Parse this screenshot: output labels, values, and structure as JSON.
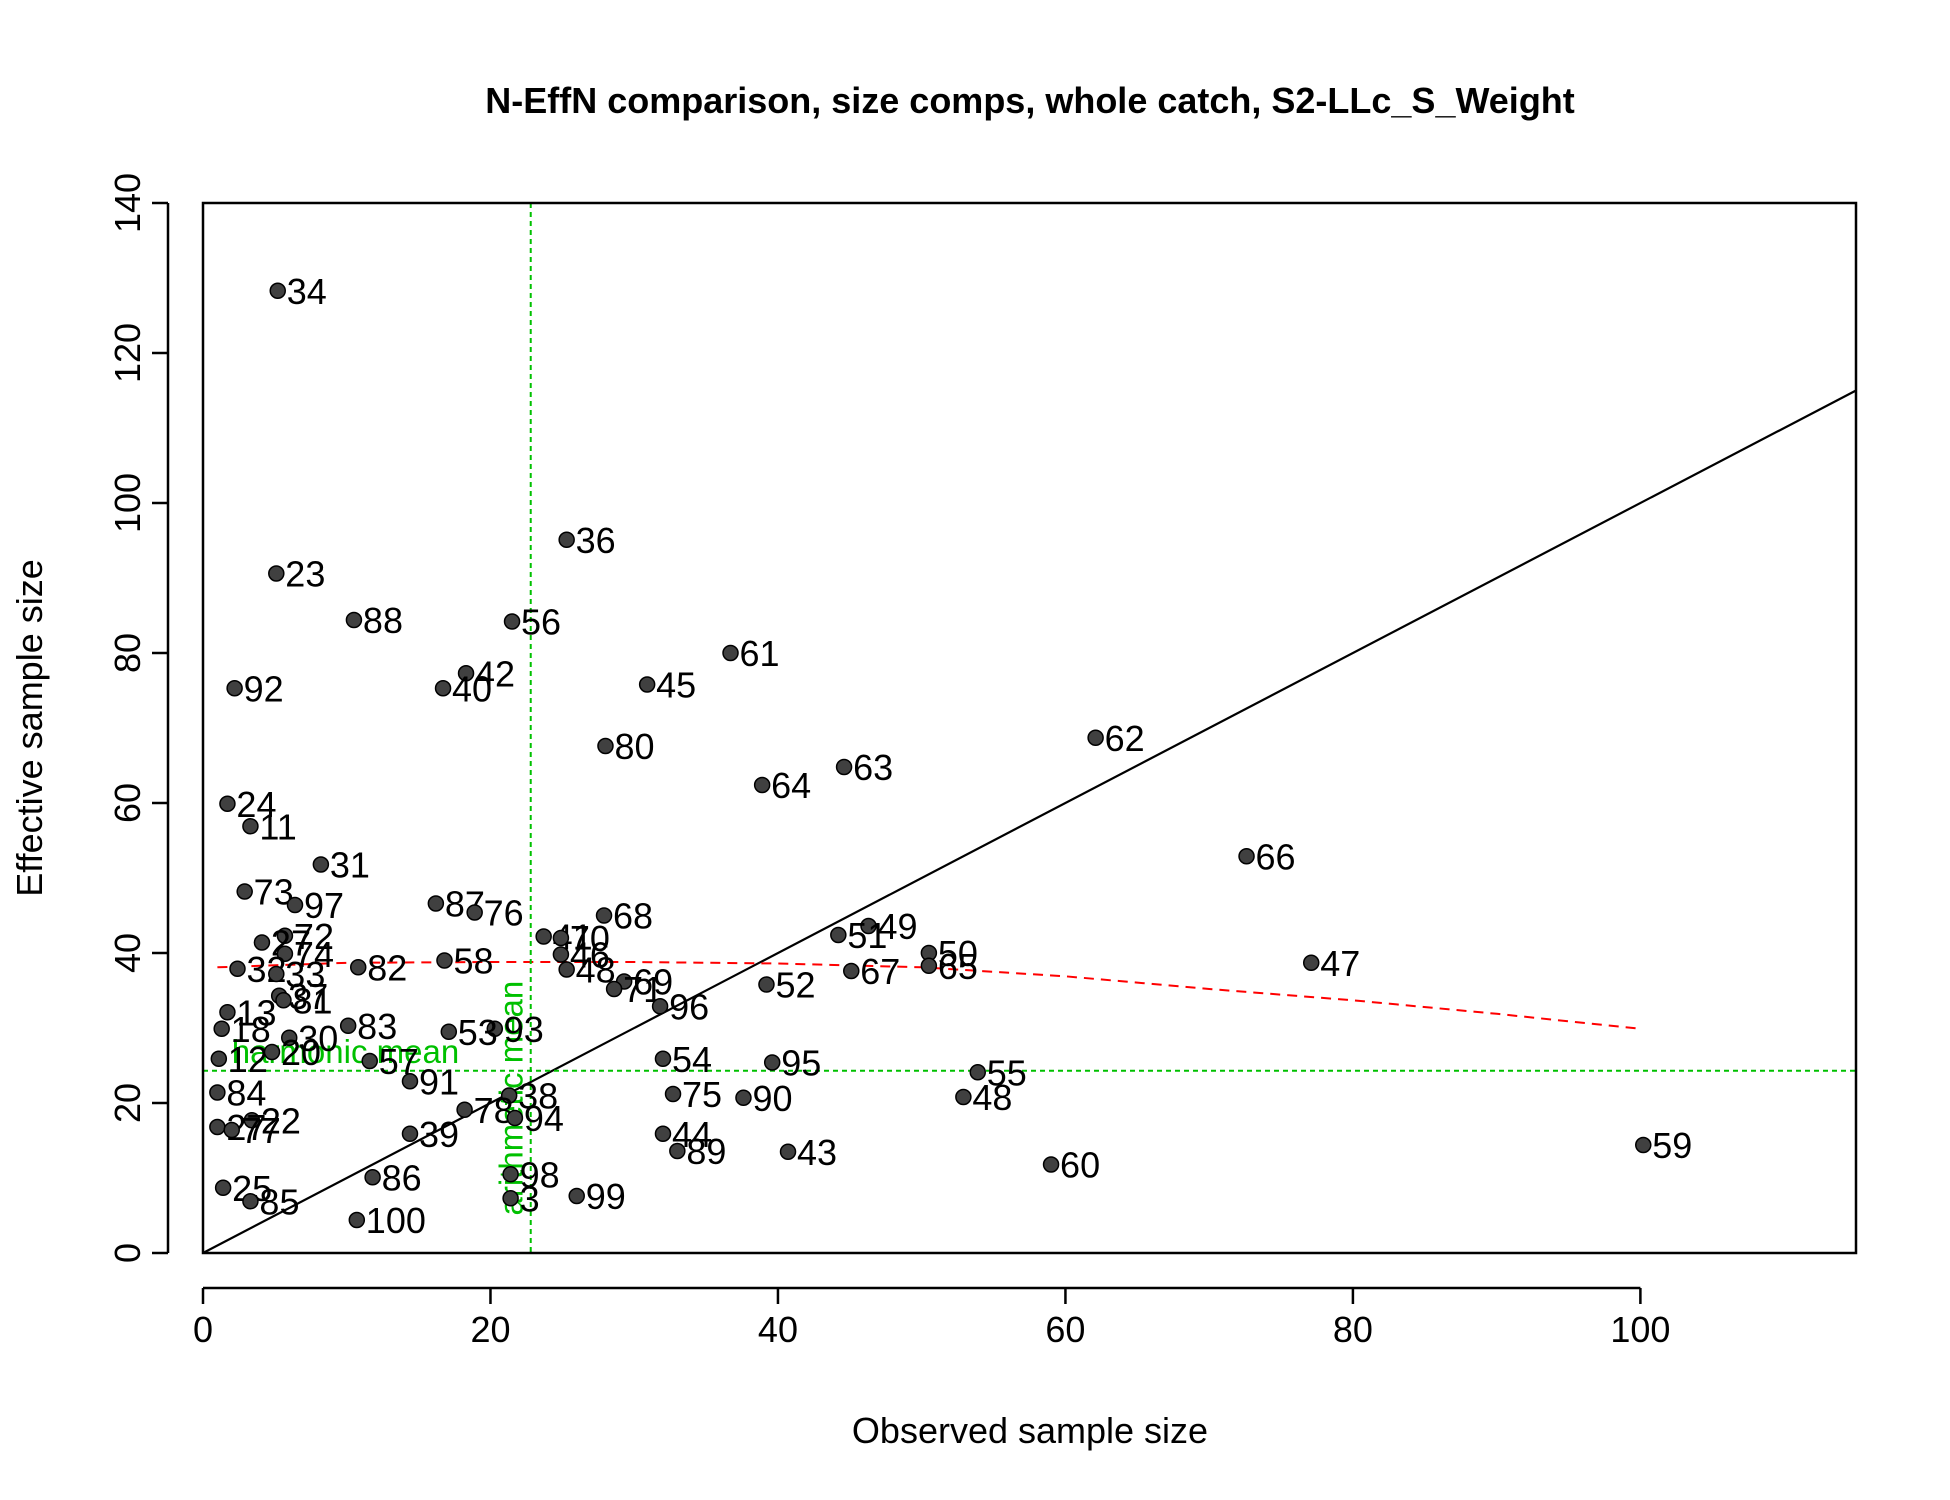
{
  "chart_data": {
    "type": "scatter",
    "title": "N-EffN comparison, size comps, whole catch, S2-LLc_S_Weight",
    "xlabel": "Observed sample size",
    "ylabel": "Effective sample size",
    "xlim": [
      0,
      115
    ],
    "ylim": [
      0,
      140
    ],
    "xticks": [
      0,
      20,
      40,
      60,
      80,
      100
    ],
    "yticks": [
      0,
      20,
      40,
      60,
      80,
      100,
      120,
      140
    ],
    "grid": false,
    "colors": {
      "points": "#404040",
      "point_edge": "#000000",
      "identity_line": "#000000",
      "loess": "#ff0000",
      "means": "#00c000"
    },
    "points": [
      {
        "label": "34",
        "x": 5.2,
        "y": 128.3
      },
      {
        "label": "36",
        "x": 25.3,
        "y": 95.1
      },
      {
        "label": "23",
        "x": 5.1,
        "y": 90.6
      },
      {
        "label": "88",
        "x": 10.5,
        "y": 84.4
      },
      {
        "label": "56",
        "x": 21.5,
        "y": 84.2
      },
      {
        "label": "61",
        "x": 36.7,
        "y": 80.0
      },
      {
        "label": "42",
        "x": 18.3,
        "y": 77.3
      },
      {
        "label": "45",
        "x": 30.9,
        "y": 75.8
      },
      {
        "label": "92",
        "x": 2.2,
        "y": 75.3
      },
      {
        "label": "40",
        "x": 16.7,
        "y": 75.3
      },
      {
        "label": "62",
        "x": 62.1,
        "y": 68.7
      },
      {
        "label": "80",
        "x": 28.0,
        "y": 67.6
      },
      {
        "label": "63",
        "x": 44.6,
        "y": 64.8
      },
      {
        "label": "64",
        "x": 38.9,
        "y": 62.4
      },
      {
        "label": "24",
        "x": 1.7,
        "y": 59.9
      },
      {
        "label": "11",
        "x": 3.3,
        "y": 56.9
      },
      {
        "label": "66",
        "x": 72.6,
        "y": 52.9
      },
      {
        "label": "31",
        "x": 8.2,
        "y": 51.8
      },
      {
        "label": "73",
        "x": 2.9,
        "y": 48.2
      },
      {
        "label": "87",
        "x": 16.2,
        "y": 46.6
      },
      {
        "label": "97",
        "x": 6.4,
        "y": 46.4
      },
      {
        "label": "76",
        "x": 18.9,
        "y": 45.4
      },
      {
        "label": "68",
        "x": 27.9,
        "y": 45.0
      },
      {
        "label": "49",
        "x": 46.3,
        "y": 43.6
      },
      {
        "label": "51",
        "x": 44.2,
        "y": 42.4
      },
      {
        "label": "72",
        "x": 5.7,
        "y": 42.3
      },
      {
        "label": "41",
        "x": 23.7,
        "y": 42.2
      },
      {
        "label": "70",
        "x": 24.9,
        "y": 42.0
      },
      {
        "label": "27",
        "x": 4.1,
        "y": 41.4
      },
      {
        "label": "74",
        "x": 5.7,
        "y": 39.9
      },
      {
        "label": "46",
        "x": 24.9,
        "y": 39.8
      },
      {
        "label": "50",
        "x": 50.5,
        "y": 40.0
      },
      {
        "label": "58",
        "x": 16.8,
        "y": 39.0
      },
      {
        "label": "47",
        "x": 77.1,
        "y": 38.7
      },
      {
        "label": "82",
        "x": 10.8,
        "y": 38.1
      },
      {
        "label": "65",
        "x": 50.5,
        "y": 38.3
      },
      {
        "label": "32",
        "x": 2.4,
        "y": 37.9
      },
      {
        "label": "48",
        "x": 25.3,
        "y": 37.8
      },
      {
        "label": "67",
        "x": 45.1,
        "y": 37.6
      },
      {
        "label": "33",
        "x": 5.1,
        "y": 37.2
      },
      {
        "label": "69",
        "x": 29.3,
        "y": 36.2
      },
      {
        "label": "52",
        "x": 39.2,
        "y": 35.8
      },
      {
        "label": "71",
        "x": 28.6,
        "y": 35.2
      },
      {
        "label": "37",
        "x": 5.3,
        "y": 34.3
      },
      {
        "label": "81",
        "x": 5.6,
        "y": 33.7
      },
      {
        "label": "96",
        "x": 31.8,
        "y": 32.9
      },
      {
        "label": "13",
        "x": 1.7,
        "y": 32.1
      },
      {
        "label": "83",
        "x": 10.1,
        "y": 30.3
      },
      {
        "label": "93",
        "x": 20.3,
        "y": 29.9
      },
      {
        "label": "18",
        "x": 1.3,
        "y": 29.9
      },
      {
        "label": "53",
        "x": 17.1,
        "y": 29.5
      },
      {
        "label": "30",
        "x": 6.0,
        "y": 28.7
      },
      {
        "label": "12",
        "x": 1.1,
        "y": 25.9
      },
      {
        "label": "20",
        "x": 4.8,
        "y": 26.8
      },
      {
        "label": "54",
        "x": 32.0,
        "y": 25.9
      },
      {
        "label": "57",
        "x": 11.6,
        "y": 25.6
      },
      {
        "label": "95",
        "x": 39.6,
        "y": 25.4
      },
      {
        "label": "55",
        "x": 53.9,
        "y": 24.1
      },
      {
        "label": "91",
        "x": 14.4,
        "y": 22.9
      },
      {
        "label": "75",
        "x": 32.7,
        "y": 21.2
      },
      {
        "label": "84",
        "x": 1.0,
        "y": 21.4
      },
      {
        "label": "38",
        "x": 21.3,
        "y": 21.0
      },
      {
        "label": "90",
        "x": 37.6,
        "y": 20.7
      },
      {
        "label": "48",
        "x": 52.9,
        "y": 20.8
      },
      {
        "label": "78",
        "x": 18.2,
        "y": 19.1
      },
      {
        "label": "94",
        "x": 21.7,
        "y": 18.0
      },
      {
        "label": "22",
        "x": 3.4,
        "y": 17.7
      },
      {
        "label": "27",
        "x": 1.0,
        "y": 16.8
      },
      {
        "label": "77",
        "x": 2.0,
        "y": 16.4
      },
      {
        "label": "39",
        "x": 14.4,
        "y": 15.9
      },
      {
        "label": "44",
        "x": 32.0,
        "y": 15.9
      },
      {
        "label": "59",
        "x": 100.2,
        "y": 14.4
      },
      {
        "label": "89",
        "x": 33.0,
        "y": 13.6
      },
      {
        "label": "43",
        "x": 40.7,
        "y": 13.5
      },
      {
        "label": "60",
        "x": 59.0,
        "y": 11.8
      },
      {
        "label": "98",
        "x": 21.4,
        "y": 10.5
      },
      {
        "label": "86",
        "x": 11.8,
        "y": 10.1
      },
      {
        "label": "25",
        "x": 1.4,
        "y": 8.7
      },
      {
        "label": "99",
        "x": 26.0,
        "y": 7.6
      },
      {
        "label": "85",
        "x": 3.3,
        "y": 6.9
      },
      {
        "label": "3",
        "x": 21.4,
        "y": 7.3
      },
      {
        "label": "100",
        "x": 10.7,
        "y": 4.4
      }
    ],
    "identity_line": {
      "from": [
        0,
        0
      ],
      "to": [
        115,
        115
      ]
    },
    "loess_line": [
      [
        1,
        38.1
      ],
      [
        10,
        38.7
      ],
      [
        20,
        38.8
      ],
      [
        30,
        38.8
      ],
      [
        40,
        38.6
      ],
      [
        50,
        38.1
      ],
      [
        60,
        36.9
      ],
      [
        70,
        35.2
      ],
      [
        80,
        33.7
      ],
      [
        90,
        31.9
      ],
      [
        100,
        29.9
      ]
    ],
    "harmonic_mean": {
      "label": "harmonic mean",
      "value": 24.3
    },
    "arithmetic_mean": {
      "label": "arithmetic mean",
      "value": 22.8
    }
  }
}
